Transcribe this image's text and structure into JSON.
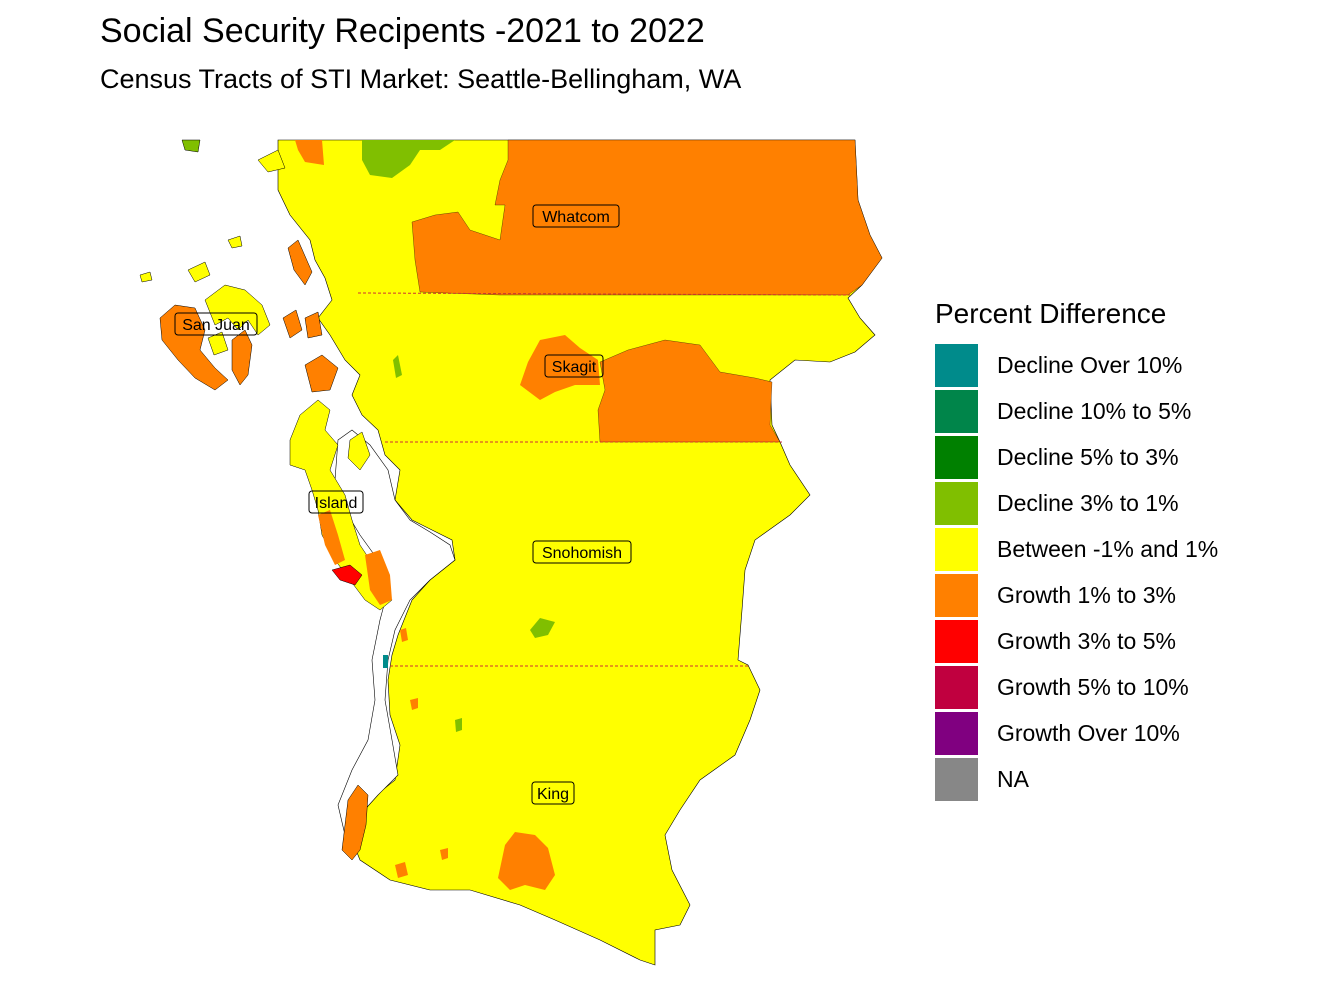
{
  "title": "Social Security Recipents -2021 to 2022",
  "subtitle": "Census Tracts of STI Market: Seattle-Bellingham, WA",
  "legend": {
    "title": "Percent Difference",
    "items": [
      {
        "label": "Decline Over 10%",
        "color": "#008B8B"
      },
      {
        "label": "Decline 10% to 5%",
        "color": "#00854A"
      },
      {
        "label": "Decline 5% to 3%",
        "color": "#008000"
      },
      {
        "label": "Decline 3% to 1%",
        "color": "#80BF00"
      },
      {
        "label": "Between -1% and 1%",
        "color": "#FFFF00"
      },
      {
        "label": "Growth 1% to 3%",
        "color": "#FF8000"
      },
      {
        "label": "Growth 3% to 5%",
        "color": "#FF0000"
      },
      {
        "label": "Growth 5% to 10%",
        "color": "#C0003F"
      },
      {
        "label": "Growth Over 10%",
        "color": "#800080"
      },
      {
        "label": "NA",
        "color": "#878787"
      }
    ]
  },
  "counties": {
    "whatcom": "Whatcom",
    "san_juan": "San Juan",
    "skagit": "Skagit",
    "island": "Island",
    "snohomish": "Snohomish",
    "king": "King"
  },
  "colors": {
    "yellow": "#FFFF00",
    "orange": "#FF8000",
    "red": "#FF0000",
    "lightgreen": "#80BF00",
    "teal": "#008B8B",
    "boundary": "#CC3333"
  }
}
